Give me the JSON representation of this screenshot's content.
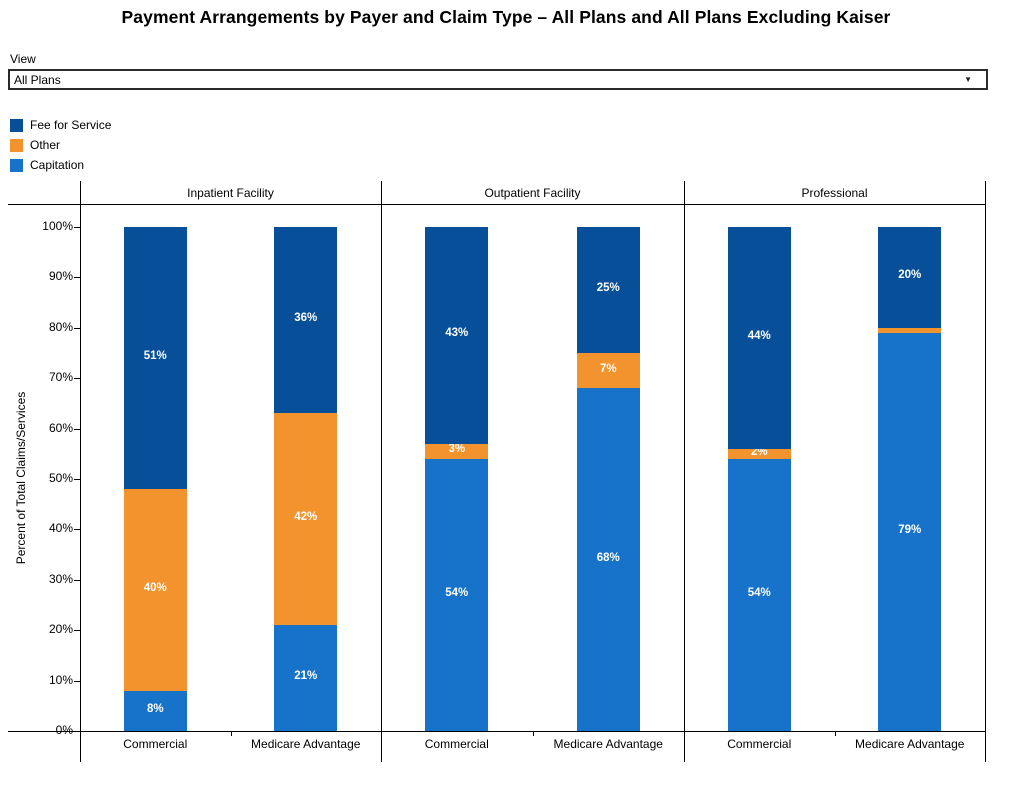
{
  "title": "Payment Arrangements by Payer and Claim Type – All Plans and All Plans Excluding Kaiser",
  "view_control": {
    "label": "View",
    "selected_value": "All Plans"
  },
  "legend": {
    "items": [
      {
        "label": "Fee for Service",
        "color": "#084F9A"
      },
      {
        "label": "Other",
        "color": "#F2932D"
      },
      {
        "label": "Capitation",
        "color": "#1773C9"
      }
    ]
  },
  "chart_data": {
    "type": "bar",
    "stacked": true,
    "ylabel": "Percent of Total Claims/Services",
    "ylim": [
      0,
      100
    ],
    "yticks": [
      0,
      10,
      20,
      30,
      40,
      50,
      60,
      70,
      80,
      90,
      100
    ],
    "ytick_labels": [
      "0%",
      "10%",
      "20%",
      "30%",
      "40%",
      "50%",
      "60%",
      "70%",
      "80%",
      "90%",
      "100%"
    ],
    "grid": false,
    "legend_position": "top-left",
    "series_bottom_to_top": [
      "Capitation",
      "Other",
      "Fee for Service"
    ],
    "colors": {
      "Fee for Service": "#084F9A",
      "Other": "#F2932D",
      "Capitation": "#1773C9"
    },
    "panels": [
      {
        "label": "Inpatient Facility",
        "bars": [
          {
            "category": "Commercial",
            "segments": [
              {
                "series": "Capitation",
                "value": 8,
                "label": "8%"
              },
              {
                "series": "Other",
                "value": 40,
                "label": "40%"
              },
              {
                "series": "Fee for Service",
                "value": 51,
                "label": "51%"
              }
            ]
          },
          {
            "category": "Medicare Advantage",
            "segments": [
              {
                "series": "Capitation",
                "value": 21,
                "label": "21%"
              },
              {
                "series": "Other",
                "value": 42,
                "label": "42%"
              },
              {
                "series": "Fee for Service",
                "value": 36,
                "label": "36%"
              }
            ]
          }
        ]
      },
      {
        "label": "Outpatient Facility",
        "bars": [
          {
            "category": "Commercial",
            "segments": [
              {
                "series": "Capitation",
                "value": 54,
                "label": "54%"
              },
              {
                "series": "Other",
                "value": 3,
                "label": "3%"
              },
              {
                "series": "Fee for Service",
                "value": 43,
                "label": "43%"
              }
            ]
          },
          {
            "category": "Medicare Advantage",
            "segments": [
              {
                "series": "Capitation",
                "value": 68,
                "label": "68%"
              },
              {
                "series": "Other",
                "value": 7,
                "label": "7%"
              },
              {
                "series": "Fee for Service",
                "value": 25,
                "label": "25%"
              }
            ]
          }
        ]
      },
      {
        "label": "Professional",
        "bars": [
          {
            "category": "Commercial",
            "segments": [
              {
                "series": "Capitation",
                "value": 54,
                "label": "54%"
              },
              {
                "series": "Other",
                "value": 2,
                "label": "2%"
              },
              {
                "series": "Fee for Service",
                "value": 44,
                "label": "44%"
              }
            ]
          },
          {
            "category": "Medicare Advantage",
            "segments": [
              {
                "series": "Capitation",
                "value": 79,
                "label": "79%"
              },
              {
                "series": "Other",
                "value": 1,
                "label": ""
              },
              {
                "series": "Fee for Service",
                "value": 20,
                "label": "20%"
              }
            ]
          }
        ]
      }
    ]
  }
}
